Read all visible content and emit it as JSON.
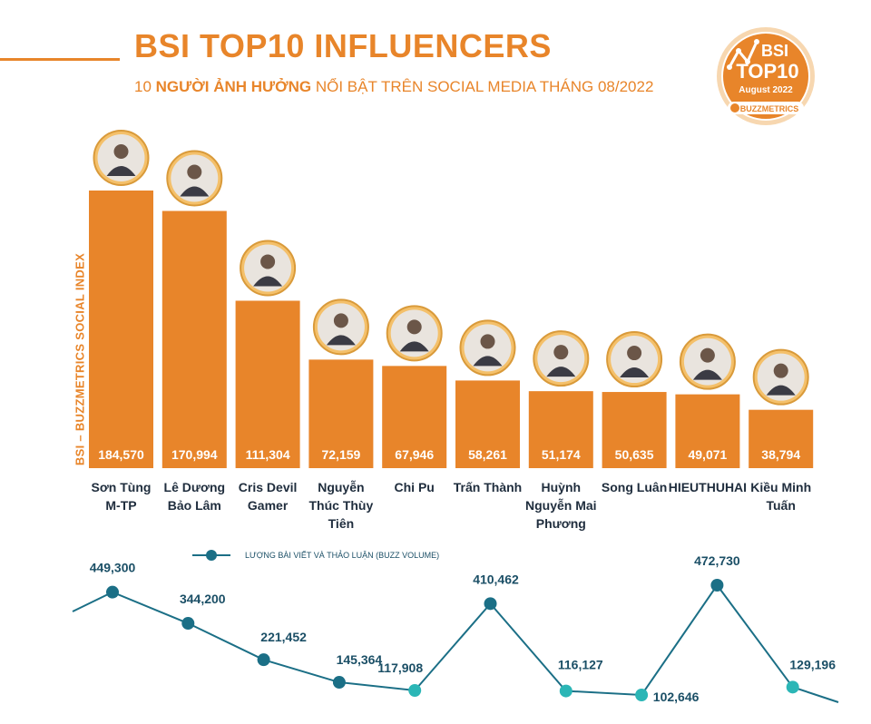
{
  "header": {
    "title": "BSI TOP10 INFLUENCERS",
    "subtitle_pre": "10 ",
    "subtitle_bold": "NGƯỜI ẢNH HƯỞNG",
    "subtitle_post": " NỔI BẬT TRÊN SOCIAL MEDIA THÁNG 08/2022"
  },
  "badge": {
    "line1": "BSI",
    "line2": "TOP10",
    "line3": "August 2022",
    "brand": "BUZZMETRICS"
  },
  "colors": {
    "accent": "#e8852a",
    "line_dark": "#1b6f86",
    "line_light": "#2bb6b6",
    "text_dark": "#1f2d3d"
  },
  "chart_data": [
    {
      "type": "bar",
      "ylabel": "BSI – BUZZMETRICS SOCIAL INDEX",
      "categories": [
        [
          "Sơn Tùng",
          "M-TP"
        ],
        [
          "Lê Dương",
          "Bảo Lâm"
        ],
        [
          "Cris Devil",
          "Gamer"
        ],
        [
          "Nguyễn",
          "Thúc Thùy",
          "Tiên"
        ],
        [
          "Chi Pu"
        ],
        [
          "Trấn Thành"
        ],
        [
          "Huỳnh",
          "Nguyễn Mai",
          "Phương"
        ],
        [
          "Song Luân"
        ],
        [
          "HIEUTHUHAI"
        ],
        [
          "Kiều Minh",
          "Tuấn"
        ]
      ],
      "values": [
        184570,
        170994,
        111304,
        72159,
        67946,
        58261,
        51174,
        50635,
        49071,
        38794
      ],
      "value_labels": [
        "184,570",
        "170,994",
        "111,304",
        "72,159",
        "67,946",
        "58,261",
        "51,174",
        "50,635",
        "49,071",
        "38,794"
      ],
      "avatar_icons": [
        "portrait-icon",
        "portrait-icon",
        "portrait-icon",
        "portrait-icon",
        "portrait-icon",
        "portrait-icon",
        "portrait-icon",
        "portrait-icon",
        "portrait-icon",
        "portrait-icon"
      ]
    },
    {
      "type": "line",
      "legend": "LƯỢNG BÀI VIẾT VÀ THẢO LUẬN (BUZZ VOLUME)",
      "values": [
        449300,
        344200,
        221452,
        145364,
        117908,
        410462,
        116127,
        102646,
        472730,
        129196
      ],
      "value_labels": [
        "449,300",
        "344,200",
        "221,452",
        "145,364",
        "117,908",
        "410,462",
        "116,127",
        "102,646",
        "472,730",
        "129,196"
      ]
    }
  ]
}
